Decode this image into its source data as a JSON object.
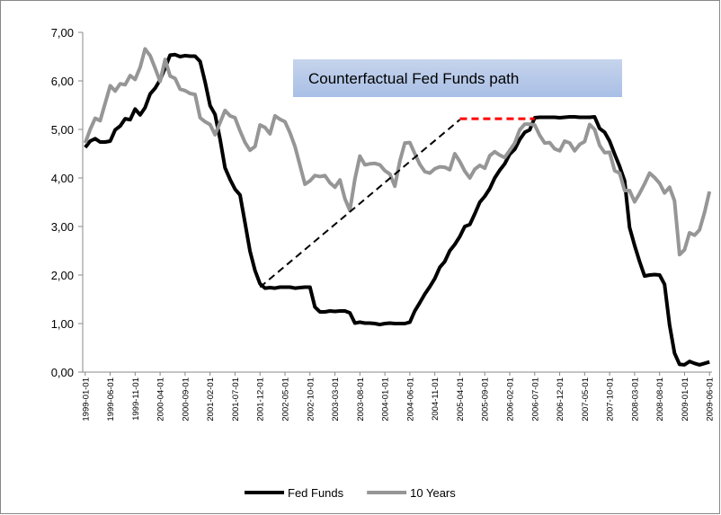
{
  "chart_data": {
    "type": "line",
    "categories": [
      "1999-01-01",
      null,
      null,
      null,
      null,
      "1999-06-01",
      null,
      null,
      null,
      null,
      "1999-11-01",
      null,
      null,
      null,
      null,
      "2000-04-01",
      null,
      null,
      null,
      null,
      "2000-09-01",
      null,
      null,
      null,
      null,
      "2001-02-01",
      null,
      null,
      null,
      null,
      "2001-07-01",
      null,
      null,
      null,
      null,
      "2001-12-01",
      null,
      null,
      null,
      null,
      "2002-05-01",
      null,
      null,
      null,
      null,
      "2002-10-01",
      null,
      null,
      null,
      null,
      "2003-03-01",
      null,
      null,
      null,
      null,
      "2003-08-01",
      null,
      null,
      null,
      null,
      "2004-01-01",
      null,
      null,
      null,
      null,
      "2004-06-01",
      null,
      null,
      null,
      null,
      "2004-11-01",
      null,
      null,
      null,
      null,
      "2005-04-01",
      null,
      null,
      null,
      null,
      "2005-09-01",
      null,
      null,
      null,
      null,
      "2006-02-01",
      null,
      null,
      null,
      null,
      "2006-07-01",
      null,
      null,
      null,
      null,
      "2006-12-01",
      null,
      null,
      null,
      null,
      "2007-05-01",
      null,
      null,
      null,
      null,
      "2007-10-01",
      null,
      null,
      null,
      null,
      "2008-03-01",
      null,
      null,
      null,
      null,
      "2008-08-01",
      null,
      null,
      null,
      null,
      "2009-01-01",
      null,
      null,
      null,
      null,
      "2009-06-01"
    ],
    "series": [
      {
        "name": "Fed Funds",
        "color": "#000000",
        "values": [
          4.63,
          4.76,
          4.81,
          4.74,
          4.74,
          4.76,
          4.99,
          5.07,
          5.22,
          5.2,
          5.42,
          5.3,
          5.45,
          5.73,
          5.85,
          6.02,
          6.27,
          6.53,
          6.54,
          6.5,
          6.52,
          6.51,
          6.51,
          6.4,
          5.98,
          5.49,
          5.31,
          4.8,
          4.21,
          3.97,
          3.77,
          3.65,
          3.07,
          2.49,
          2.09,
          1.82,
          1.73,
          1.74,
          1.73,
          1.75,
          1.75,
          1.75,
          1.73,
          1.74,
          1.75,
          1.75,
          1.34,
          1.24,
          1.24,
          1.26,
          1.25,
          1.26,
          1.26,
          1.22,
          1.01,
          1.03,
          1.01,
          1.01,
          1.0,
          0.98,
          1.0,
          1.01,
          1.0,
          1.0,
          1.0,
          1.03,
          1.26,
          1.43,
          1.61,
          1.76,
          1.93,
          2.16,
          2.28,
          2.5,
          2.63,
          2.79,
          3.0,
          3.04,
          3.26,
          3.5,
          3.62,
          3.78,
          4.0,
          4.16,
          4.29,
          4.49,
          4.59,
          4.79,
          4.94,
          4.99,
          5.24,
          5.25,
          5.25,
          5.25,
          5.25,
          5.24,
          5.25,
          5.26,
          5.26,
          5.25,
          5.25,
          5.25,
          5.26,
          5.02,
          4.94,
          4.76,
          4.49,
          4.24,
          3.94,
          2.98,
          2.61,
          2.28,
          1.98,
          2.0,
          2.01,
          2.0,
          1.81,
          0.97,
          0.39,
          0.16,
          0.15,
          0.22,
          0.18,
          0.15,
          0.18,
          0.21
        ]
      },
      {
        "name": "10 Years",
        "color": "#969696",
        "values": [
          4.72,
          5.0,
          5.23,
          5.18,
          5.54,
          5.9,
          5.79,
          5.94,
          5.92,
          6.11,
          6.03,
          6.28,
          6.66,
          6.52,
          6.26,
          5.99,
          6.44,
          6.1,
          6.05,
          5.83,
          5.8,
          5.74,
          5.72,
          5.24,
          5.16,
          5.1,
          4.89,
          5.14,
          5.39,
          5.28,
          5.24,
          4.97,
          4.73,
          4.57,
          4.65,
          5.09,
          5.04,
          4.91,
          5.28,
          5.21,
          5.16,
          4.93,
          4.65,
          4.26,
          3.87,
          3.94,
          4.05,
          4.03,
          4.05,
          3.9,
          3.81,
          3.96,
          3.57,
          3.33,
          3.98,
          4.45,
          4.27,
          4.29,
          4.3,
          4.27,
          4.15,
          4.08,
          3.83,
          4.35,
          4.72,
          4.73,
          4.5,
          4.28,
          4.13,
          4.1,
          4.19,
          4.23,
          4.22,
          4.17,
          4.5,
          4.34,
          4.14,
          4.0,
          4.18,
          4.26,
          4.2,
          4.46,
          4.54,
          4.47,
          4.42,
          4.57,
          4.72,
          4.99,
          5.11,
          5.11,
          5.09,
          4.88,
          4.72,
          4.73,
          4.6,
          4.56,
          4.76,
          4.72,
          4.56,
          4.69,
          4.75,
          5.1,
          5.0,
          4.67,
          4.52,
          4.53,
          4.15,
          4.1,
          3.74,
          3.74,
          3.51,
          3.68,
          3.88,
          4.1,
          4.01,
          3.89,
          3.69,
          3.81,
          3.53,
          2.42,
          2.52,
          2.87,
          2.82,
          2.93,
          3.29,
          3.72
        ]
      }
    ],
    "annotation": "Counterfactual Fed Funds path",
    "annotation_lines": [
      {
        "x": [
          35,
          75
        ],
        "values": [
          1.75,
          5.2
        ],
        "color": "#000000",
        "dash": true
      },
      {
        "x": [
          75,
          90
        ],
        "values": [
          5.22,
          5.22
        ],
        "color": "#ff0000",
        "dash": true
      }
    ],
    "ylim": [
      0,
      7
    ],
    "yticks": [
      {
        "value": 0,
        "label": "0,00"
      },
      {
        "value": 1,
        "label": "1,00"
      },
      {
        "value": 2,
        "label": "2,00"
      },
      {
        "value": 3,
        "label": "3,00"
      },
      {
        "value": 4,
        "label": "4,00"
      },
      {
        "value": 5,
        "label": "5,00"
      },
      {
        "value": 6,
        "label": "6,00"
      },
      {
        "value": 7,
        "label": "7,00"
      }
    ],
    "grid": false,
    "legend": "bottom"
  }
}
